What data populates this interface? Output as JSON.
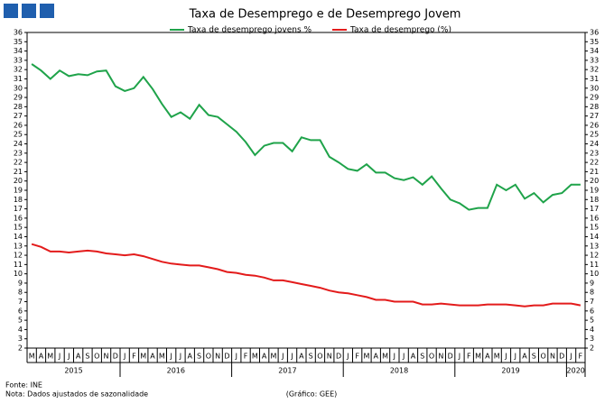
{
  "chart_data": {
    "type": "line",
    "title": "Taxa de Desemprego  e de Desemprego Jovem",
    "categories": [
      "M",
      "A",
      "M",
      "J",
      "J",
      "A",
      "S",
      "O",
      "N",
      "D",
      "J",
      "F",
      "M",
      "A",
      "M",
      "J",
      "J",
      "A",
      "S",
      "O",
      "N",
      "D",
      "J",
      "F",
      "M",
      "A",
      "M",
      "J",
      "J",
      "A",
      "S",
      "O",
      "N",
      "D",
      "J",
      "F",
      "M",
      "A",
      "M",
      "J",
      "J",
      "A",
      "S",
      "O",
      "N",
      "D",
      "J",
      "F",
      "M",
      "A",
      "M",
      "J",
      "J",
      "A",
      "S",
      "O",
      "N",
      "D",
      "J",
      "F"
    ],
    "years": [
      "2015",
      "2016",
      "2017",
      "2018",
      "2019",
      "2020"
    ],
    "series": [
      {
        "name": "Taxa de desemprego jovens %",
        "color": "#1fa34a",
        "values": [
          32.6,
          31.9,
          31.0,
          31.9,
          31.3,
          31.5,
          31.4,
          31.8,
          31.9,
          30.2,
          29.7,
          30.0,
          31.2,
          29.9,
          28.3,
          26.9,
          27.4,
          26.7,
          28.2,
          27.1,
          26.9,
          26.1,
          25.3,
          24.2,
          22.8,
          23.8,
          24.1,
          24.1,
          23.2,
          24.7,
          24.4,
          24.4,
          22.6,
          22.0,
          21.3,
          21.1,
          21.8,
          20.9,
          20.9,
          20.3,
          20.1,
          20.4,
          19.6,
          20.5,
          19.2,
          18.0,
          17.6,
          16.9,
          17.1,
          17.1,
          19.6,
          19.0,
          19.6,
          18.1,
          18.7,
          17.7,
          18.5,
          18.7,
          19.6,
          19.6
        ]
      },
      {
        "name": "Taxa de desemprego (%)",
        "color": "#e31b1b",
        "values": [
          13.2,
          12.9,
          12.4,
          12.4,
          12.3,
          12.4,
          12.5,
          12.4,
          12.2,
          12.1,
          12.0,
          12.1,
          11.9,
          11.6,
          11.3,
          11.1,
          11.0,
          10.9,
          10.9,
          10.7,
          10.5,
          10.2,
          10.1,
          9.9,
          9.8,
          9.6,
          9.3,
          9.3,
          9.1,
          8.9,
          8.7,
          8.5,
          8.2,
          8.0,
          7.9,
          7.7,
          7.5,
          7.2,
          7.2,
          7.0,
          7.0,
          7.0,
          6.7,
          6.7,
          6.8,
          6.7,
          6.6,
          6.6,
          6.6,
          6.7,
          6.7,
          6.7,
          6.6,
          6.5,
          6.6,
          6.6,
          6.8,
          6.8,
          6.8,
          6.6
        ]
      }
    ],
    "ylim": [
      2,
      36
    ],
    "yticks": [
      2,
      3,
      4,
      5,
      6,
      7,
      8,
      9,
      10,
      11,
      12,
      13,
      14,
      15,
      16,
      17,
      18,
      19,
      20,
      21,
      22,
      23,
      24,
      25,
      26,
      27,
      28,
      29,
      30,
      31,
      32,
      33,
      34,
      35,
      36
    ],
    "y2lim": [
      2,
      36
    ],
    "y2ticks": [
      2,
      3,
      4,
      5,
      6,
      7,
      8,
      9,
      10,
      11,
      12,
      13,
      14,
      15,
      16,
      17,
      18,
      19,
      20,
      21,
      22,
      23,
      24,
      25,
      26,
      27,
      28,
      29,
      30,
      31,
      32,
      33,
      34,
      35,
      36
    ],
    "grid": false,
    "source": "Fonte: INE",
    "note": "Nota: Dados ajustados de sazonalidade",
    "credit": "(Gráfico: GEE)"
  }
}
